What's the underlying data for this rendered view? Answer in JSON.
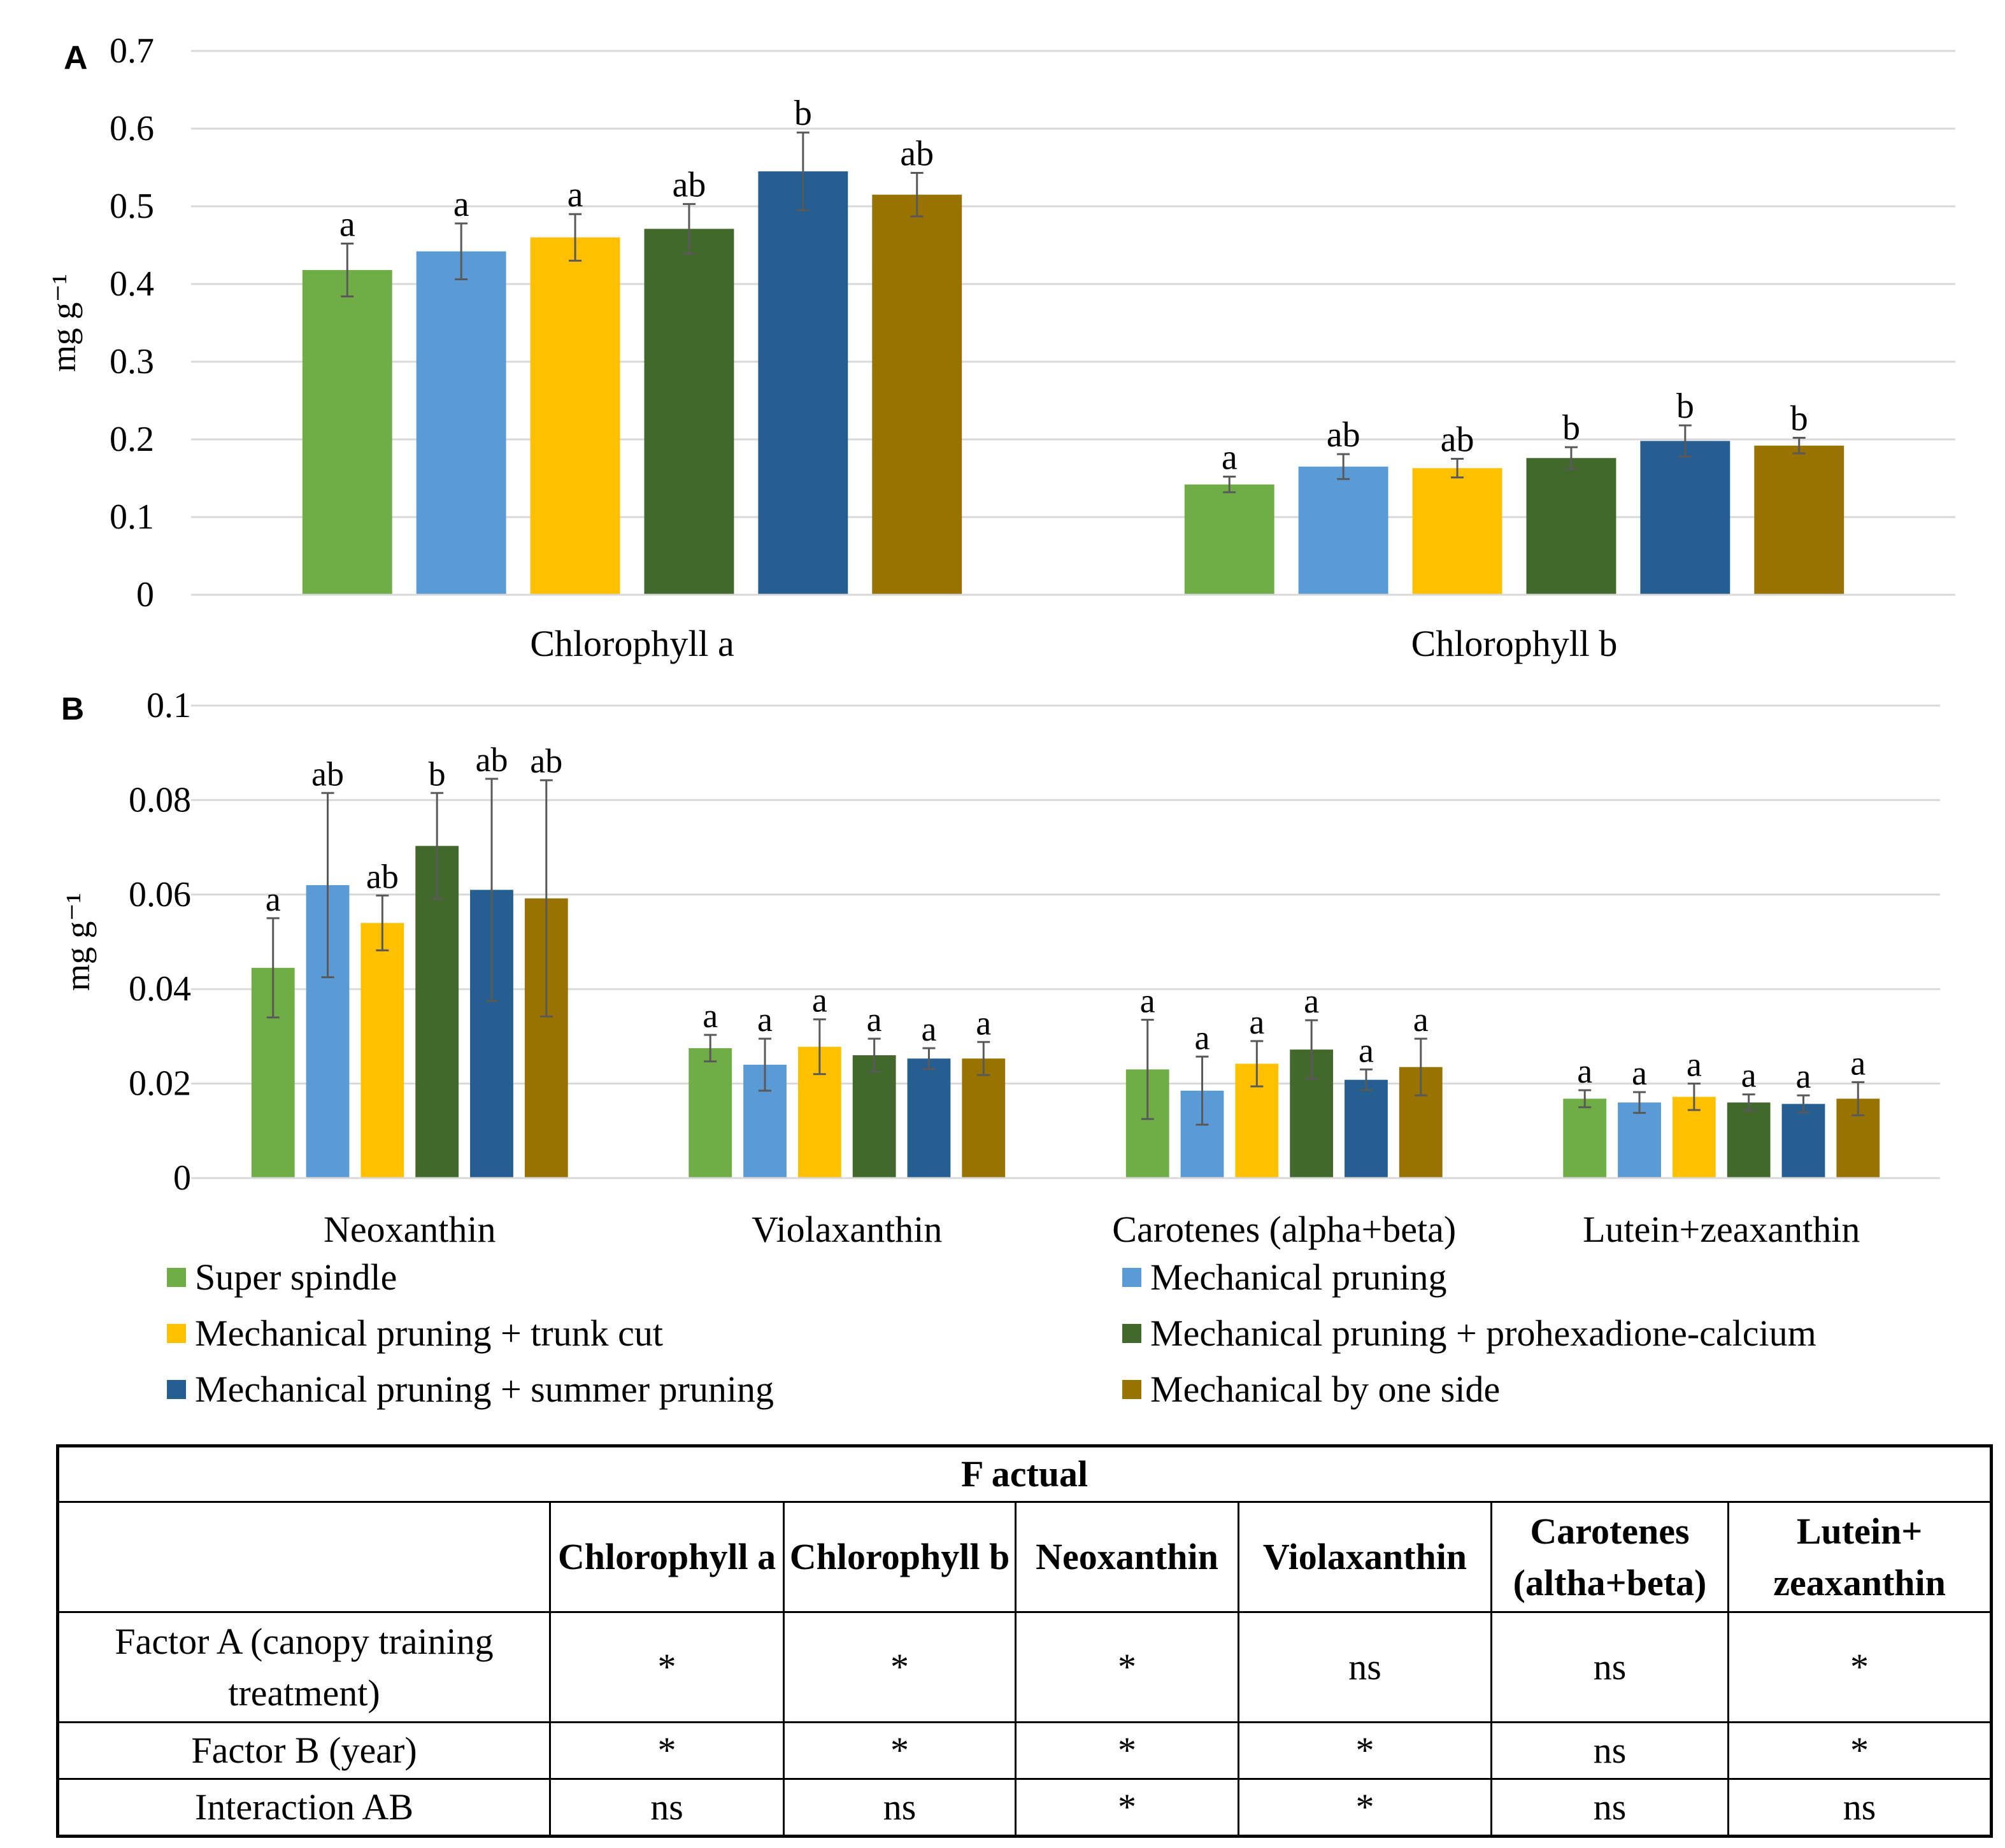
{
  "legend": {
    "items": [
      {
        "label": "Super spindle",
        "color": "#70ad47"
      },
      {
        "label": "Mechanical pruning",
        "color": "#5b9bd5"
      },
      {
        "label": "Mechanical pruning + trunk cut",
        "color": "#ffc000"
      },
      {
        "label": "Mechanical pruning + prohexadione-calcium",
        "color": "#43682b"
      },
      {
        "label": "Mechanical pruning + summer pruning",
        "color": "#255e91"
      },
      {
        "label": "Mechanical by one side",
        "color": "#997300"
      }
    ]
  },
  "chart_data": [
    {
      "panel": "A",
      "type": "bar",
      "ylabel": "mg g⁻¹",
      "ylim": [
        0,
        0.7
      ],
      "yticks": [
        0,
        0.1,
        0.2,
        0.3,
        0.4,
        0.5,
        0.6,
        0.7
      ],
      "ytick_labels": [
        "0",
        "0.1",
        "0.2",
        "0.3",
        "0.4",
        "0.5",
        "0.6",
        "0.7"
      ],
      "grid": true,
      "categories": [
        "Chlorophyll a",
        "Chlorophyll b"
      ],
      "series": [
        {
          "name": "Super spindle",
          "values": [
            0.418,
            0.142
          ],
          "errors": [
            0.034,
            0.01
          ],
          "letters": [
            "a",
            "a"
          ]
        },
        {
          "name": "Mechanical pruning",
          "values": [
            0.442,
            0.165
          ],
          "errors": [
            0.036,
            0.016
          ],
          "letters": [
            "a",
            "ab"
          ]
        },
        {
          "name": "Mechanical pruning + trunk cut",
          "values": [
            0.46,
            0.163
          ],
          "errors": [
            0.03,
            0.012
          ],
          "letters": [
            "a",
            "ab"
          ]
        },
        {
          "name": "Mechanical pruning + prohexadione-calcium",
          "values": [
            0.471,
            0.176
          ],
          "errors": [
            0.032,
            0.014
          ],
          "letters": [
            "ab",
            "b"
          ]
        },
        {
          "name": "Mechanical pruning + summer pruning",
          "values": [
            0.545,
            0.198
          ],
          "errors": [
            0.05,
            0.02
          ],
          "letters": [
            "b",
            "b"
          ]
        },
        {
          "name": "Mechanical by one side",
          "values": [
            0.515,
            0.192
          ],
          "errors": [
            0.028,
            0.01
          ],
          "letters": [
            "ab",
            "b"
          ]
        }
      ]
    },
    {
      "panel": "B",
      "type": "bar",
      "ylabel": "mg g⁻¹",
      "ylim": [
        0,
        0.1
      ],
      "yticks": [
        0,
        0.02,
        0.04,
        0.06,
        0.08,
        0.1
      ],
      "ytick_labels": [
        "0",
        "0.02",
        "0.04",
        "0.06",
        "0.08",
        "0.1"
      ],
      "grid": true,
      "categories": [
        "Neoxanthin",
        "Violaxanthin",
        "Carotenes (alpha+beta)",
        "Lutein+zeaxanthin"
      ],
      "series": [
        {
          "name": "Super spindle",
          "values": [
            0.0445,
            0.0275,
            0.023,
            0.0168
          ],
          "errors": [
            0.0105,
            0.0028,
            0.0105,
            0.0018
          ],
          "letters": [
            "a",
            "a",
            "a",
            "a"
          ]
        },
        {
          "name": "Mechanical pruning",
          "values": [
            0.062,
            0.024,
            0.0185,
            0.016
          ],
          "errors": [
            0.0195,
            0.0055,
            0.0072,
            0.0022
          ],
          "letters": [
            "ab",
            "a",
            "a",
            "a"
          ]
        },
        {
          "name": "Mechanical pruning + trunk cut",
          "values": [
            0.054,
            0.0278,
            0.0242,
            0.0172
          ],
          "errors": [
            0.0058,
            0.0058,
            0.0048,
            0.0028
          ],
          "letters": [
            "ab",
            "a",
            "a",
            "a"
          ]
        },
        {
          "name": "Mechanical pruning + prohexadione-calcium",
          "values": [
            0.0703,
            0.026,
            0.0272,
            0.016
          ],
          "errors": [
            0.0112,
            0.0035,
            0.0062,
            0.0017
          ],
          "letters": [
            "b",
            "a",
            "a",
            "a"
          ]
        },
        {
          "name": "Mechanical pruning + summer pruning",
          "values": [
            0.061,
            0.0253,
            0.0208,
            0.0157
          ],
          "errors": [
            0.0235,
            0.0022,
            0.0022,
            0.0018
          ],
          "letters": [
            "ab",
            "a",
            "a",
            "a"
          ]
        },
        {
          "name": "Mechanical by one side",
          "values": [
            0.0592,
            0.0253,
            0.0235,
            0.0168
          ],
          "errors": [
            0.025,
            0.0035,
            0.006,
            0.0035
          ],
          "letters": [
            "ab",
            "a",
            "a",
            "a"
          ]
        }
      ]
    }
  ],
  "table": {
    "title": "F actual",
    "columns": [
      "Chlorophyll a",
      "Chlorophyll b",
      "Neoxanthin",
      "Violaxanthin",
      "Carotenes (altha+beta)",
      "Lutein+ zeaxanthin"
    ],
    "rows": [
      {
        "label": "Factor A (canopy training treatment)",
        "cells": [
          "*",
          "*",
          "*",
          "ns",
          "ns",
          "*"
        ]
      },
      {
        "label": "Factor B (year)",
        "cells": [
          "*",
          "*",
          "*",
          "*",
          "ns",
          "*"
        ]
      },
      {
        "label": "Interaction AB",
        "cells": [
          "ns",
          "ns",
          "*",
          "*",
          "ns",
          "ns"
        ]
      }
    ]
  }
}
